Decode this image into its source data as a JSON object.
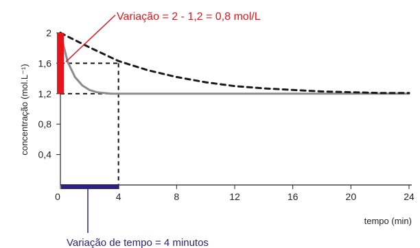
{
  "chart_data": {
    "type": "line",
    "xlabel": "tempo (min)",
    "ylabel": "concentração (mol.L⁻¹)",
    "xlim": [
      0,
      24
    ],
    "ylim": [
      0,
      2
    ],
    "x_ticks": [
      "0",
      "4",
      "8",
      "12",
      "16",
      "20",
      "24"
    ],
    "y_ticks": [
      "0,4",
      "0,8",
      "1,2",
      "1,6",
      "2"
    ],
    "series": [
      {
        "style": "solid-gray",
        "color": "#8c8c8c",
        "x": [
          0,
          0.5,
          1,
          1.5,
          2,
          2.5,
          3,
          3.5,
          4,
          6,
          24
        ],
        "y": [
          2,
          1.62,
          1.42,
          1.31,
          1.25,
          1.22,
          1.21,
          1.2,
          1.2,
          1.2,
          1.2
        ]
      },
      {
        "style": "dashed-black",
        "color": "#1a1a1a",
        "x": [
          0,
          2,
          4,
          6,
          8,
          10,
          12,
          14,
          16,
          18,
          20,
          22,
          24
        ],
        "y": [
          2,
          1.81,
          1.63,
          1.51,
          1.42,
          1.35,
          1.3,
          1.27,
          1.25,
          1.23,
          1.22,
          1.21,
          1.21
        ]
      }
    ],
    "annotations": {
      "concentration_change": {
        "text": "Variação = 2 - 1,2 = 0,8 mol/L",
        "color": "#e8141b",
        "y_from": 1.2,
        "y_to": 2
      },
      "time_change": {
        "text": "Variação de tempo = 4 minutos",
        "color": "#2b2280",
        "x_from": 0,
        "x_to": 4
      },
      "guide_point": {
        "x": 4,
        "y": 1.6
      },
      "guide_level": 1.2
    }
  }
}
